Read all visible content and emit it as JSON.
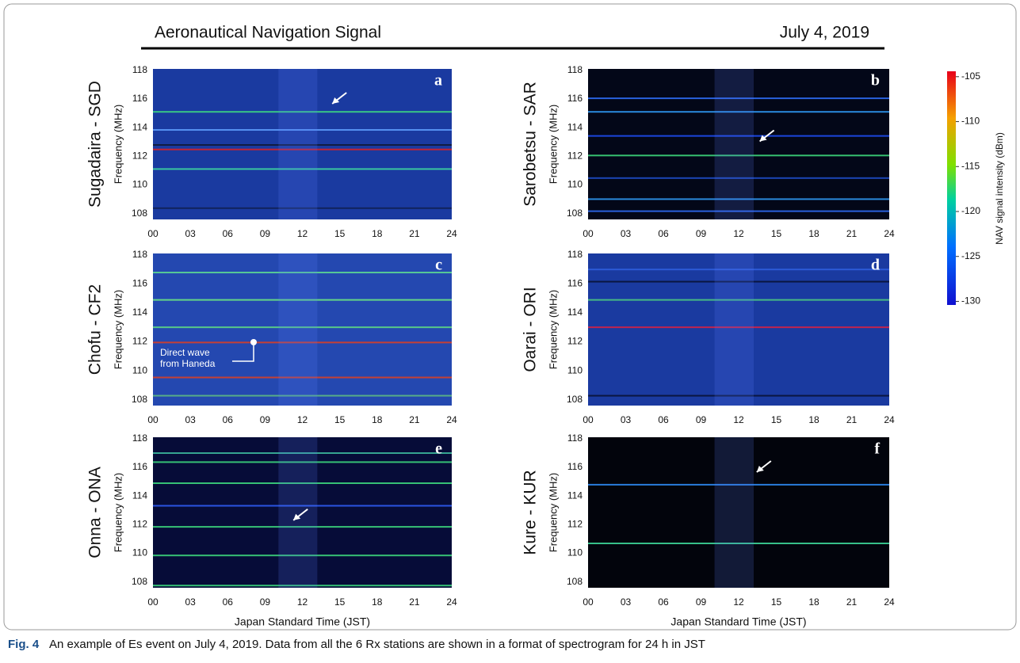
{
  "header": {
    "title": "Aeronautical Navigation Signal",
    "date": "July 4, 2019"
  },
  "axes": {
    "ylabel": "Frequency (MHz)",
    "xlabel": "Japan Standard Time (JST)",
    "xlim": [
      0,
      24
    ],
    "xticks": [
      {
        "value": 0,
        "label": "00"
      },
      {
        "value": 3,
        "label": "03"
      },
      {
        "value": 6,
        "label": "06"
      },
      {
        "value": 9,
        "label": "09"
      },
      12,
      15,
      18,
      21,
      24
    ],
    "ylim": [
      107.6,
      118.1
    ],
    "yticks": [
      108,
      110,
      112,
      114,
      116,
      118
    ]
  },
  "panels": [
    {
      "station": "Sugadaira - SGD",
      "letter": "a"
    },
    {
      "station": "Sarobetsu - SAR",
      "letter": "b"
    },
    {
      "station": "Chofu - CF2",
      "letter": "c",
      "annotation": [
        "Direct wave",
        "from Haneda"
      ]
    },
    {
      "station": "Oarai - ORI",
      "letter": "d"
    },
    {
      "station": "Onna - ONA",
      "letter": "e"
    },
    {
      "station": "Kure - KUR",
      "letter": "f"
    }
  ],
  "colorbar": {
    "label": "NAV signal intensity (dBm)",
    "lim": [
      -104.4,
      -130.4
    ],
    "ticks": [
      -105,
      -110,
      -115,
      -120,
      -125,
      -130
    ]
  },
  "caption": {
    "label": "Fig. 4",
    "text": "An example of Es event on July 4, 2019. Data from all the 6 Rx stations are shown in a format of spectrogram for 24 h in JST"
  }
}
